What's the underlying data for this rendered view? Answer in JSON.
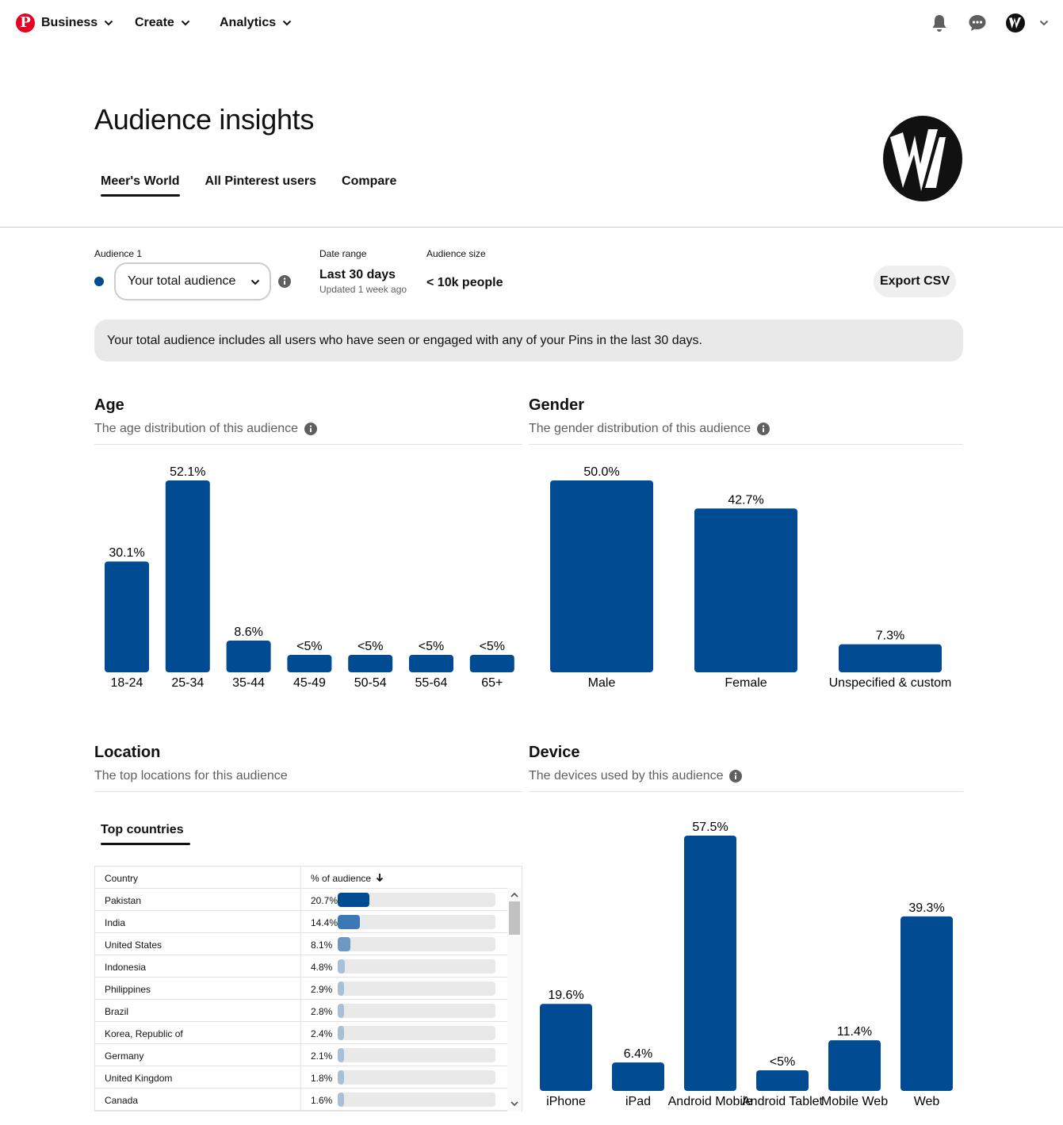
{
  "nav": {
    "business_label": "Business",
    "create_label": "Create",
    "analytics_label": "Analytics",
    "logo_letter": "P"
  },
  "header": {
    "title": "Audience insights",
    "tabs": [
      "Meer's World",
      "All Pinterest users",
      "Compare"
    ],
    "active_tab": "Meer's World"
  },
  "filters": {
    "audience_label": "Audience 1",
    "audience_value": "Your total audience",
    "date_label": "Date range",
    "date_value": "Last 30 days",
    "date_updated": "Updated 1 week ago",
    "size_label": "Audience size",
    "size_value": "< 10k people",
    "export_label": "Export CSV",
    "series_color": "#004b91"
  },
  "banner": {
    "text": "Your total audience includes all users who have seen or engaged with any of your Pins in the last 30 days."
  },
  "age": {
    "title": "Age",
    "subtitle": "The age distribution of this audience"
  },
  "gender": {
    "title": "Gender",
    "subtitle": "The gender distribution of this audience"
  },
  "location": {
    "title": "Location",
    "subtitle": "The top locations for this audience",
    "subtab": "Top countries",
    "col_country": "Country",
    "col_pct": "% of audience",
    "rows": [
      {
        "country": "Pakistan",
        "pct_label": "20.7%",
        "pct": 20.7
      },
      {
        "country": "India",
        "pct_label": "14.4%",
        "pct": 14.4
      },
      {
        "country": "United States",
        "pct_label": "8.1%",
        "pct": 8.1
      },
      {
        "country": "Indonesia",
        "pct_label": "4.8%",
        "pct": 4.8
      },
      {
        "country": "Philippines",
        "pct_label": "2.9%",
        "pct": 2.9
      },
      {
        "country": "Brazil",
        "pct_label": "2.8%",
        "pct": 2.8
      },
      {
        "country": "Korea, Republic of",
        "pct_label": "2.4%",
        "pct": 2.4
      },
      {
        "country": "Germany",
        "pct_label": "2.1%",
        "pct": 2.1
      },
      {
        "country": "United Kingdom",
        "pct_label": "1.8%",
        "pct": 1.8
      },
      {
        "country": "Canada",
        "pct_label": "1.6%",
        "pct": 1.6
      }
    ]
  },
  "device": {
    "title": "Device",
    "subtitle": "The devices used by this audience"
  },
  "chart_data": [
    {
      "id": "age",
      "type": "bar",
      "categories": [
        "18-24",
        "25-34",
        "35-44",
        "45-49",
        "50-54",
        "55-64",
        "65+"
      ],
      "values": [
        30.1,
        52.1,
        8.6,
        3.4,
        3.4,
        3.4,
        3.4
      ],
      "labels": [
        "30.1%",
        "52.1%",
        "8.6%",
        "<5%",
        "<5%",
        "<5%",
        "<5%"
      ],
      "ylim": [
        0,
        52.1
      ],
      "color": "#004b91"
    },
    {
      "id": "gender",
      "type": "bar",
      "categories": [
        "Male",
        "Female",
        "Unspecified & custom"
      ],
      "values": [
        50.0,
        42.7,
        7.3
      ],
      "labels": [
        "50.0%",
        "42.7%",
        "7.3%"
      ],
      "ylim": [
        0,
        50.0
      ],
      "color": "#004b91"
    },
    {
      "id": "device",
      "type": "bar",
      "categories": [
        "iPhone",
        "iPad",
        "Android Mobile",
        "Android Tablet",
        "Mobile Web",
        "Web"
      ],
      "values": [
        19.6,
        6.4,
        57.5,
        4.5,
        11.4,
        39.3
      ],
      "labels": [
        "19.6%",
        "6.4%",
        "57.5%",
        "<5%",
        "11.4%",
        "39.3%"
      ],
      "ylim": [
        0,
        57.5
      ],
      "color": "#004b91"
    }
  ]
}
